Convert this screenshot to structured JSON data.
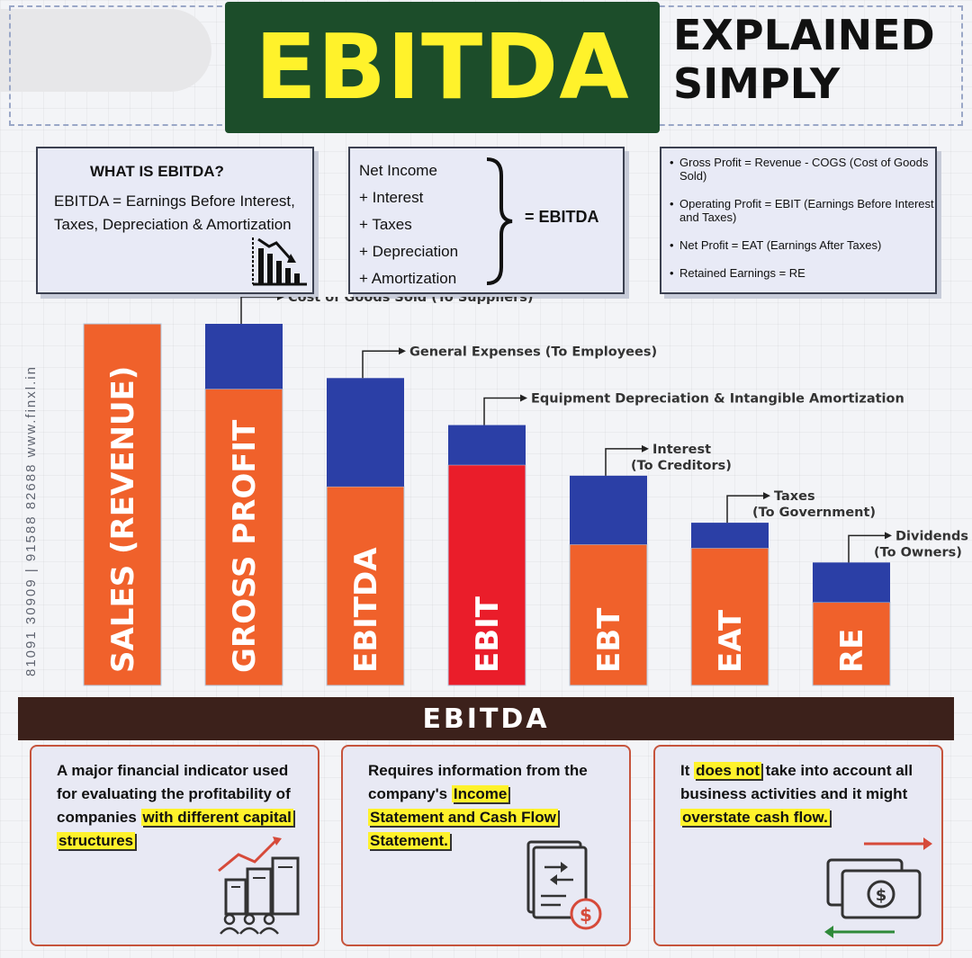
{
  "header": {
    "title": "EBITDA",
    "subtitle_line1": "EXPLAINED",
    "subtitle_line2": "SIMPLY"
  },
  "side_text": "81091 30909 | 91588 82688          www.finxl.in",
  "what_box": {
    "title": "WHAT IS EBITDA?",
    "definition": "EBITDA = Earnings Before Interest, Taxes, Depreciation & Amortization"
  },
  "formula_box": {
    "items": [
      "Net Income",
      "+ Interest",
      "+ Taxes",
      "+ Depreciation",
      "+ Amortization"
    ],
    "result": "= EBITDA"
  },
  "definitions": [
    "Gross Profit = Revenue - COGS (Cost of Goods Sold)",
    "Operating Profit = EBIT (Earnings Before Interest and Taxes)",
    "Net Profit = EAT (Earnings After Taxes)",
    "Retained Earnings = RE"
  ],
  "chart_data": {
    "type": "bar",
    "categories": [
      "SALES (REVENUE)",
      "GROSS PROFIT",
      "EBITDA",
      "EBIT",
      "EBT",
      "EAT",
      "RE"
    ],
    "series": [
      {
        "values": [
          100,
          82,
          55,
          61,
          39,
          38,
          23
        ]
      },
      {
        "values": [
          0,
          18,
          30,
          11,
          19,
          7,
          11
        ]
      }
    ],
    "annotations": [
      {
        "line1": "Cost of Goods Sold (To Suppliers)",
        "line2": ""
      },
      {
        "line1": "General Expenses (To Employees)",
        "line2": ""
      },
      {
        "line1": "Equipment Depreciation & Intangible Amortization",
        "line2": ""
      },
      {
        "line1": "Interest",
        "line2": "(To Creditors)"
      },
      {
        "line1": "Taxes",
        "line2": "(To Government)"
      },
      {
        "line1": "Dividends",
        "line2": "(To Owners)"
      }
    ],
    "ylim": [
      0,
      100
    ],
    "colors": {
      "remaining": "#f0612b",
      "highlight": "#ea1d2a",
      "deducted": "#2b3fa6"
    }
  },
  "banner": {
    "label": "EBITDA"
  },
  "cards": {
    "card1": {
      "pre": "A major financial indicator used for evaluating the profitability of companies ",
      "hl1": "with different capital",
      "hl2": "structures"
    },
    "card2": {
      "pre": "Requires information from the company's ",
      "hl1": "Income",
      "hl2": "Statement and Cash Flow",
      "hl3": "Statement."
    },
    "card3": {
      "pre": "It ",
      "hl1": "does not",
      "mid": " take into account all business activities and it might ",
      "hl2": "overstate cash flow."
    }
  },
  "icons": {
    "chart": "declining-bar-chart-icon",
    "buildings": "growth-buildings-icon",
    "document": "financial-document-icon",
    "cash": "cash-flow-icon"
  }
}
